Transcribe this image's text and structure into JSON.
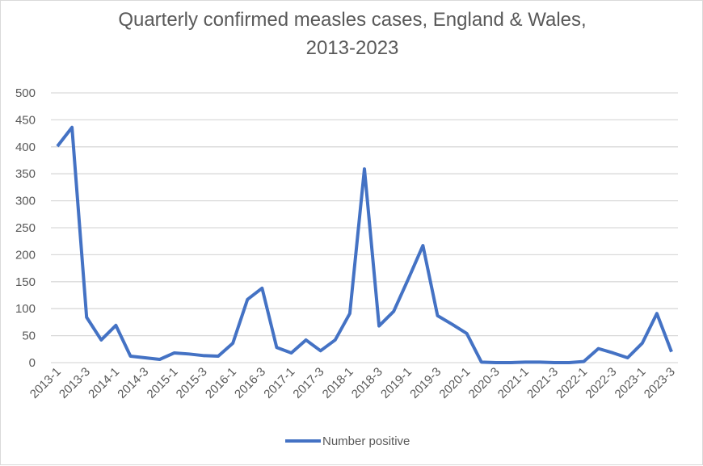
{
  "chart_data": {
    "type": "line",
    "title_line1": "Quarterly confirmed measles cases, England & Wales,",
    "title_line2": "2013-2023",
    "xlabel": "",
    "ylabel": "",
    "ylim": [
      0,
      500
    ],
    "yticks": [
      0,
      50,
      100,
      150,
      200,
      250,
      300,
      350,
      400,
      450,
      500
    ],
    "grid": true,
    "legend_position": "bottom",
    "color": "#4472C4",
    "x": [
      "2013-1",
      "2013-2",
      "2013-3",
      "2013-4",
      "2014-1",
      "2014-2",
      "2014-3",
      "2014-4",
      "2015-1",
      "2015-2",
      "2015-3",
      "2015-4",
      "2016-1",
      "2016-2",
      "2016-3",
      "2016-4",
      "2017-1",
      "2017-2",
      "2017-3",
      "2017-4",
      "2018-1",
      "2018-2",
      "2018-3",
      "2018-4",
      "2019-1",
      "2019-2",
      "2019-3",
      "2019-4",
      "2020-1",
      "2020-2",
      "2020-3",
      "2020-4",
      "2021-1",
      "2021-2",
      "2021-3",
      "2021-4",
      "2022-1",
      "2022-2",
      "2022-3",
      "2022-4",
      "2023-1",
      "2023-2",
      "2023-3"
    ],
    "xtick_labels": [
      "2013-1",
      "2013-3",
      "2014-1",
      "2014-3",
      "2015-1",
      "2015-3",
      "2016-1",
      "2016-3",
      "2017-1",
      "2017-3",
      "2018-1",
      "2018-3",
      "2019-1",
      "2019-3",
      "2020-1",
      "2020-3",
      "2021-1",
      "2021-3",
      "2022-1",
      "2022-3",
      "2023-1",
      "2023-3"
    ],
    "series": [
      {
        "name": "Number positive",
        "values": [
          401,
          436,
          84,
          42,
          69,
          12,
          9,
          6,
          18,
          16,
          13,
          12,
          36,
          117,
          138,
          28,
          18,
          42,
          22,
          42,
          91,
          359,
          68,
          95,
          155,
          217,
          87,
          71,
          54,
          1,
          0,
          0,
          1,
          1,
          0,
          0,
          2,
          26,
          18,
          9,
          36,
          91,
          20
        ]
      }
    ]
  }
}
